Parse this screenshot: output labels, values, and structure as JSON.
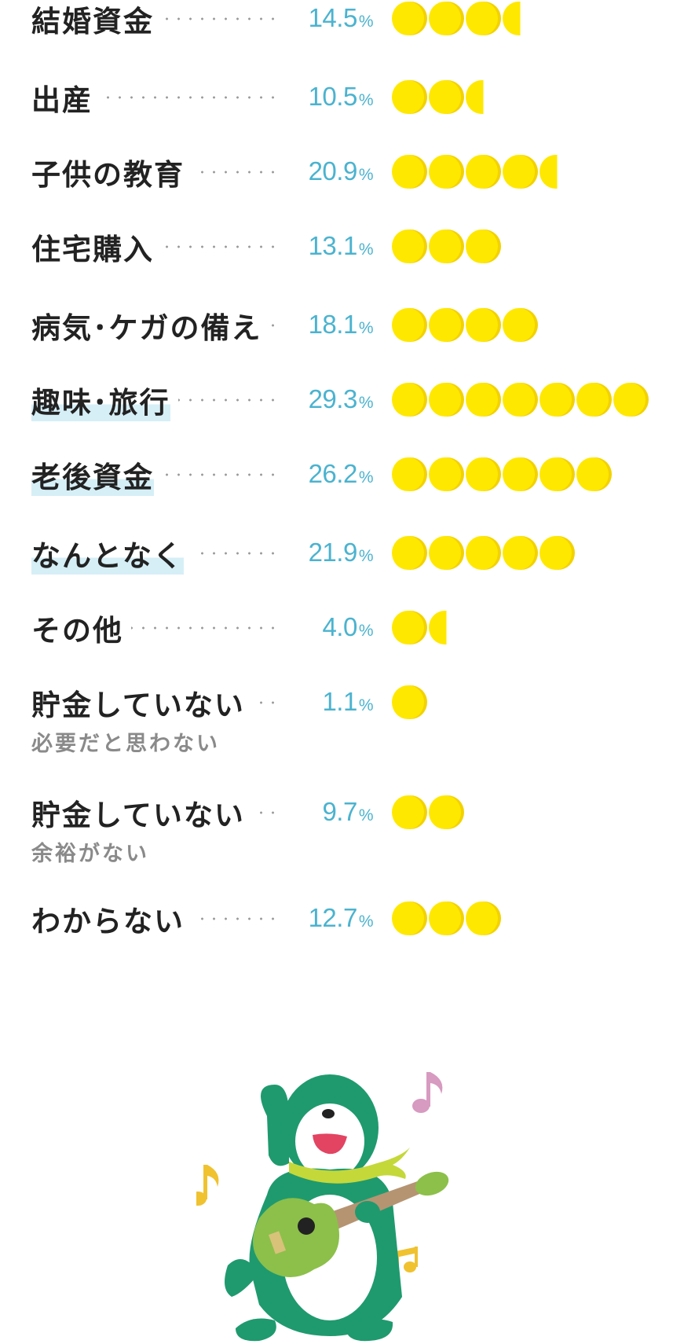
{
  "chart_data": {
    "type": "bar",
    "categories": [
      {
        "label": "結婚資金",
        "sub": "",
        "highlight": false,
        "value": 14.5
      },
      {
        "label": "出産",
        "sub": "",
        "highlight": false,
        "value": 10.5
      },
      {
        "label": "子供の教育",
        "sub": "",
        "highlight": false,
        "value": 20.9
      },
      {
        "label": "住宅購入",
        "sub": "",
        "highlight": false,
        "value": 13.1
      },
      {
        "label": "病気･ケガの備え",
        "sub": "",
        "highlight": false,
        "value": 18.1
      },
      {
        "label": "趣味･旅行",
        "sub": "",
        "highlight": true,
        "value": 29.3
      },
      {
        "label": "老後資金",
        "sub": "",
        "highlight": true,
        "value": 26.2
      },
      {
        "label": "なんとなく",
        "sub": "",
        "highlight": true,
        "value": 21.9
      },
      {
        "label": "その他",
        "sub": "",
        "highlight": false,
        "value": 4.0
      },
      {
        "label": "貯金していない",
        "sub": "必要だと思わない",
        "highlight": false,
        "value": 1.1
      },
      {
        "label": "貯金していない",
        "sub": "余裕がない",
        "highlight": false,
        "value": 9.7
      },
      {
        "label": "わからない",
        "sub": "",
        "highlight": false,
        "value": 12.7
      }
    ],
    "value_labels": [
      "14.5",
      "10.5",
      "20.9",
      "13.1",
      "18.1",
      "29.3",
      "26.2",
      "21.9",
      "4.0",
      "1.1",
      "9.7",
      "12.7"
    ],
    "unit": "%",
    "coins_per_row": [
      3.5,
      2.5,
      4.5,
      3,
      4,
      7,
      6,
      5,
      1.5,
      1,
      2,
      3
    ],
    "colors": {
      "value": "#4bb3cf",
      "coin": "#ffe800",
      "coin_edge": "#f2d200",
      "highlight": "#d6eff7",
      "label": "#222222",
      "sub_label": "#8a8a8a"
    }
  },
  "illustration": {
    "name": "otter-mascot-playing-guitar",
    "colors": {
      "body": "#1f9a6f",
      "scarf": "#c4d83a",
      "guitar": "#8cc04a",
      "note1": "#d79ac0",
      "note2": "#f0c230",
      "note3": "#f0c230"
    }
  }
}
